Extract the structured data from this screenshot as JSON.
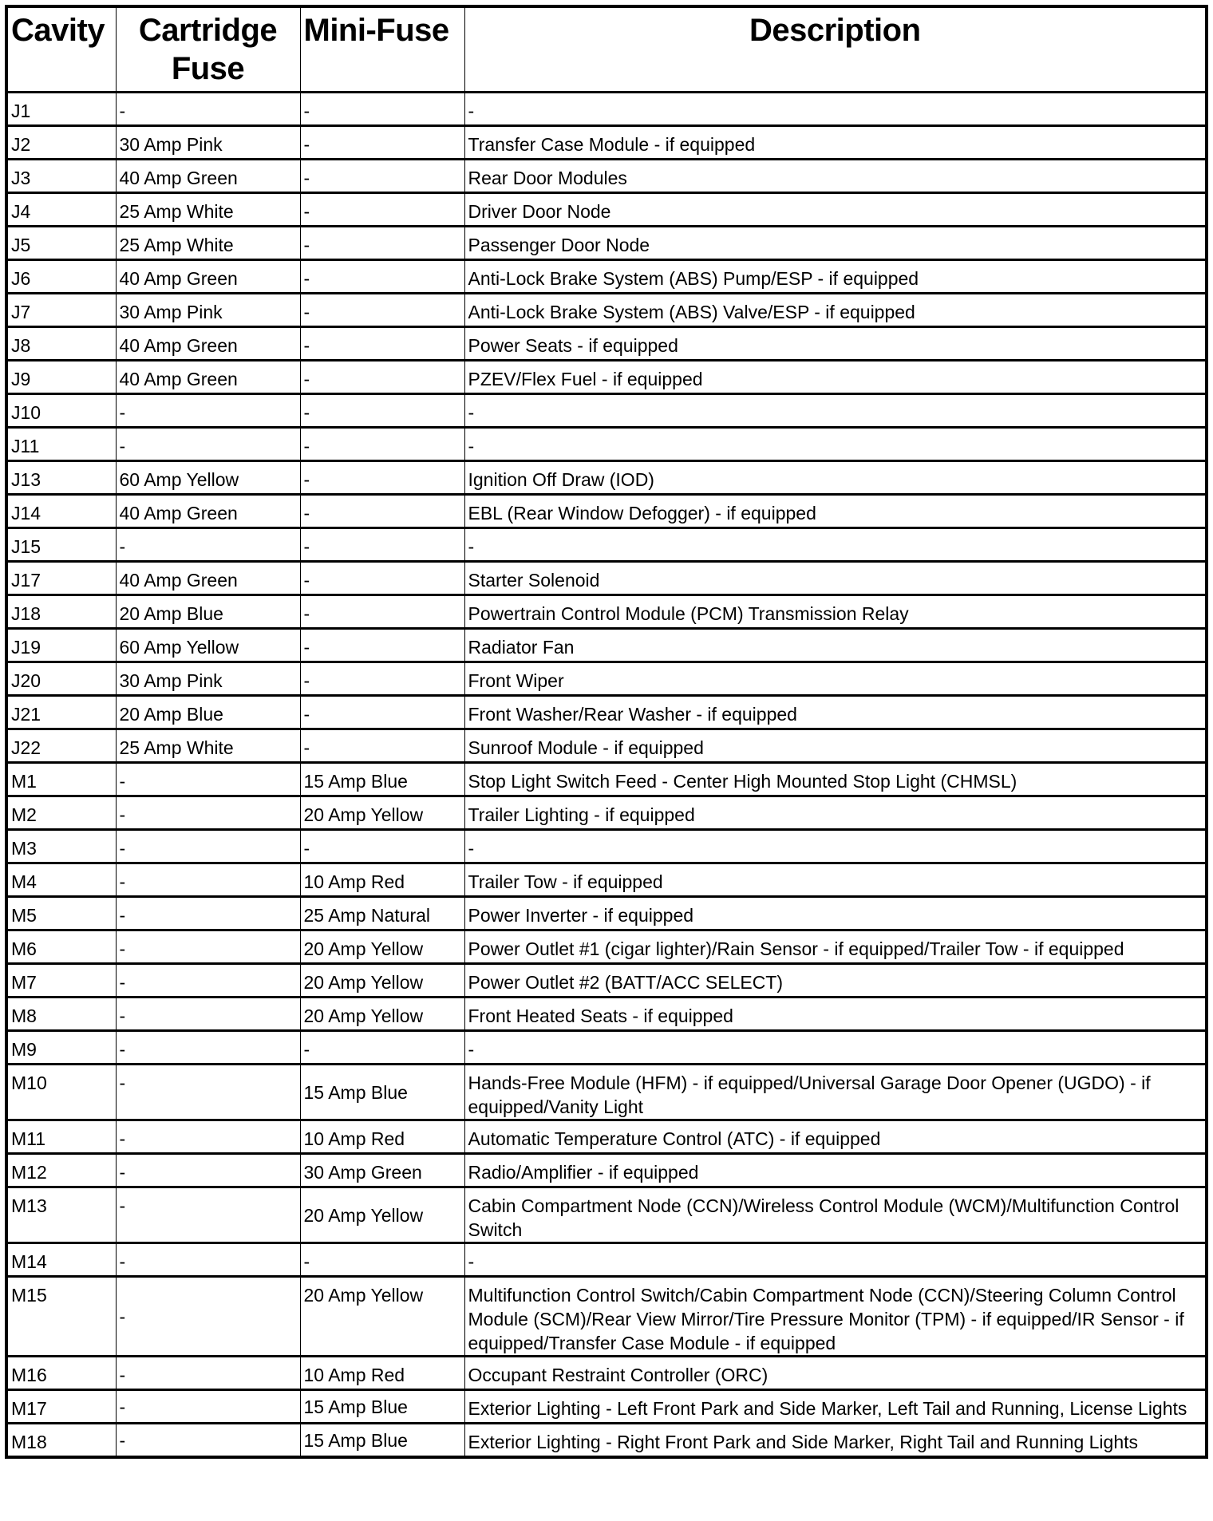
{
  "headers": {
    "cavity": "Cavity",
    "cartridge": "Cartridge Fuse",
    "mini": "Mini-Fuse",
    "description": "Description"
  },
  "rows": [
    {
      "cavity": "J1",
      "cartridge": "-",
      "mini": "-",
      "description": "-"
    },
    {
      "cavity": "J2",
      "cartridge": "30 Amp Pink",
      "mini": "-",
      "description": "Transfer Case Module - if equipped"
    },
    {
      "cavity": "J3",
      "cartridge": "40 Amp Green",
      "mini": "-",
      "description": "Rear Door Modules"
    },
    {
      "cavity": "J4",
      "cartridge": "25 Amp White",
      "mini": "-",
      "description": "Driver Door Node"
    },
    {
      "cavity": "J5",
      "cartridge": "25 Amp White",
      "mini": "-",
      "description": "Passenger Door Node"
    },
    {
      "cavity": "J6",
      "cartridge": "40 Amp Green",
      "mini": "-",
      "description": "Anti-Lock Brake System (ABS) Pump/ESP - if equipped"
    },
    {
      "cavity": "J7",
      "cartridge": "30 Amp Pink",
      "mini": "-",
      "description": "Anti-Lock Brake System (ABS) Valve/ESP - if equipped"
    },
    {
      "cavity": "J8",
      "cartridge": "40 Amp Green",
      "mini": "-",
      "description": "Power Seats - if equipped"
    },
    {
      "cavity": "J9",
      "cartridge": "40 Amp Green",
      "mini": "-",
      "description": "PZEV/Flex Fuel - if equipped"
    },
    {
      "cavity": "J10",
      "cartridge": "-",
      "mini": "-",
      "description": "-"
    },
    {
      "cavity": "J11",
      "cartridge": "-",
      "mini": "-",
      "description": "-"
    },
    {
      "cavity": "J13",
      "cartridge": "60 Amp Yellow",
      "mini": "-",
      "description": "Ignition Off Draw (IOD)"
    },
    {
      "cavity": "J14",
      "cartridge": "40 Amp Green",
      "mini": "-",
      "description": "EBL (Rear Window Defogger) - if equipped"
    },
    {
      "cavity": "J15",
      "cartridge": "-",
      "mini": "-",
      "description": "-"
    },
    {
      "cavity": "J17",
      "cartridge": "40 Amp Green",
      "mini": "-",
      "description": "Starter Solenoid"
    },
    {
      "cavity": "J18",
      "cartridge": "20 Amp Blue",
      "mini": "-",
      "description": "Powertrain Control Module (PCM) Transmission Relay"
    },
    {
      "cavity": "J19",
      "cartridge": "60 Amp Yellow",
      "mini": "-",
      "description": "Radiator Fan"
    },
    {
      "cavity": "J20",
      "cartridge": "30 Amp Pink",
      "mini": "-",
      "description": "Front Wiper"
    },
    {
      "cavity": "J21",
      "cartridge": "20 Amp Blue",
      "mini": "-",
      "description": "Front Washer/Rear Washer - if equipped"
    },
    {
      "cavity": "J22",
      "cartridge": "25 Amp White",
      "mini": "-",
      "description": "Sunroof Module - if equipped"
    },
    {
      "cavity": "M1",
      "cartridge": "-",
      "mini": "15 Amp Blue",
      "description": "Stop Light Switch Feed - Center High Mounted Stop Light (CHMSL)"
    },
    {
      "cavity": "M2",
      "cartridge": "-",
      "mini": "20 Amp Yellow",
      "description": "Trailer Lighting - if equipped"
    },
    {
      "cavity": "M3",
      "cartridge": "-",
      "mini": "-",
      "description": "-"
    },
    {
      "cavity": "M4",
      "cartridge": "-",
      "mini": "10 Amp Red",
      "description": "Trailer Tow - if equipped"
    },
    {
      "cavity": "M5",
      "cartridge": "-",
      "mini": "25 Amp Natural",
      "description": "Power Inverter - if equipped"
    },
    {
      "cavity": "M6",
      "cartridge": "-",
      "mini": "20 Amp Yellow",
      "description": "Power Outlet #1 (cigar lighter)/Rain Sensor - if equipped/Trailer Tow - if equipped"
    },
    {
      "cavity": "M7",
      "cartridge": "-",
      "mini": "20 Amp Yellow",
      "description": "Power Outlet #2 (BATT/ACC SELECT)"
    },
    {
      "cavity": "M8",
      "cartridge": "-",
      "mini": "20 Amp Yellow",
      "description": "Front Heated Seats - if equipped"
    },
    {
      "cavity": "M9",
      "cartridge": "-",
      "mini": "-",
      "description": "-"
    },
    {
      "cavity": "M10",
      "cartridge": "-",
      "mini": "15 Amp Blue",
      "description": "Hands-Free Module (HFM) - if equipped/Universal Garage Door Opener (UGDO) - if equipped/Vanity Light"
    },
    {
      "cavity": "M11",
      "cartridge": "-",
      "mini": "10 Amp Red",
      "description": "Automatic Temperature Control (ATC) - if equipped"
    },
    {
      "cavity": "M12",
      "cartridge": "-",
      "mini": "30 Amp Green",
      "description": "Radio/Amplifier - if equipped"
    },
    {
      "cavity": "M13",
      "cartridge": "-",
      "mini": "20 Amp Yellow",
      "description": "Cabin Compartment Node (CCN)/Wireless Control Module (WCM)/Multifunction Control Switch"
    },
    {
      "cavity": "M14",
      "cartridge": "-",
      "mini": "-",
      "description": "-"
    },
    {
      "cavity": "M15",
      "cartridge": "-",
      "mini": "20 Amp Yellow",
      "description": "Multifunction Control Switch/Cabin Compartment Node (CCN)/Steering Column Control Module (SCM)/Rear View Mirror/Tire Pressure Monitor (TPM) - if equipped/IR Sensor - if equipped/Transfer Case Module - if equipped"
    },
    {
      "cavity": "M16",
      "cartridge": "-",
      "mini": "10 Amp Red",
      "description": "Occupant Restraint Controller (ORC)"
    },
    {
      "cavity": "M17",
      "cartridge": "-",
      "mini": "15 Amp Blue",
      "description": "Exterior Lighting - Left Front Park and Side Marker, Left Tail and Running, License Lights"
    },
    {
      "cavity": "M18",
      "cartridge": "-",
      "mini": "15 Amp Blue",
      "description": "Exterior Lighting - Right Front Park and Side Marker, Right Tail and Running Lights"
    }
  ]
}
